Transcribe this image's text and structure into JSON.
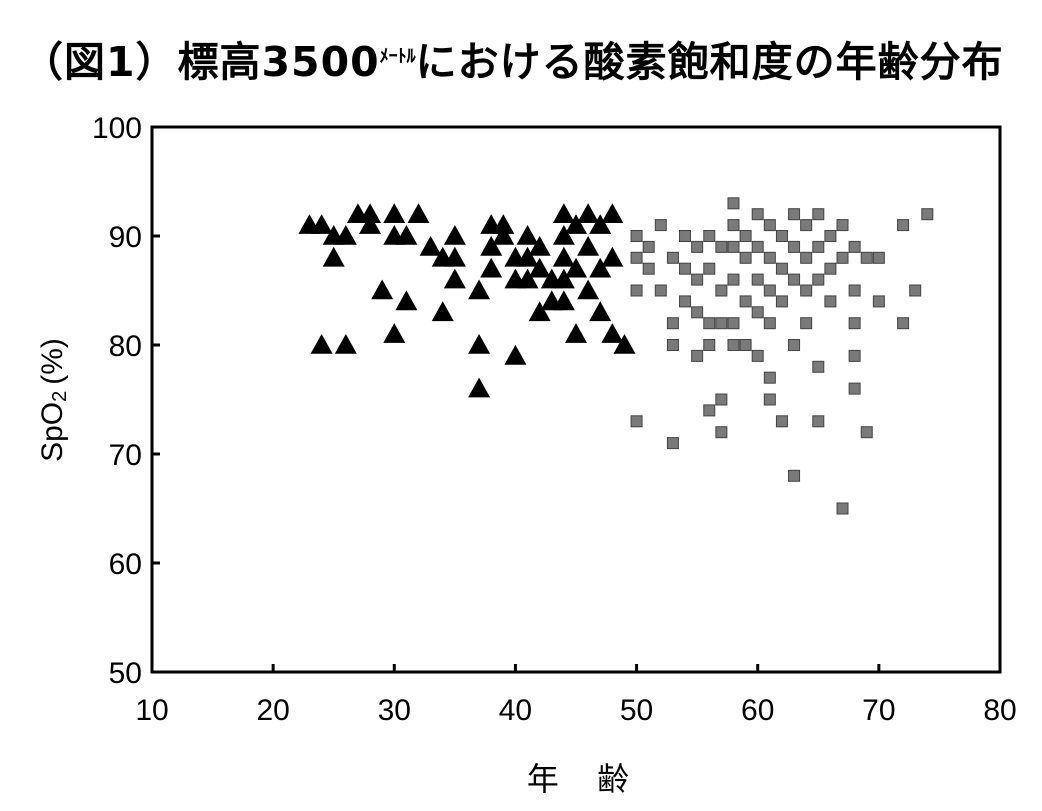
{
  "title": {
    "prefix": "（図1）",
    "main": "標高3500",
    "unit_small": "ﾒｰﾄﾙ",
    "rest": "における酸素飽和度の年齢分布"
  },
  "chart_data": {
    "type": "scatter",
    "title": "（図1）標高3500ﾒｰﾄﾙにおける酸素飽和度の年齢分布",
    "xlabel": "年 齢",
    "ylabel": "SpO2 (%)",
    "ylabel_parts": {
      "base": "SpO",
      "sub": "2",
      "suffix": "(%)"
    },
    "xlim": [
      10,
      80
    ],
    "ylim": [
      50,
      100
    ],
    "x_ticks": [
      10,
      20,
      30,
      40,
      50,
      60,
      70,
      80
    ],
    "y_ticks": [
      50,
      60,
      70,
      80,
      90,
      100
    ],
    "grid": false,
    "series": [
      {
        "marker": "triangle",
        "color": "#000000",
        "points": [
          [
            23,
            91
          ],
          [
            24,
            91
          ],
          [
            25,
            90
          ],
          [
            25,
            88
          ],
          [
            26,
            90
          ],
          [
            27,
            92
          ],
          [
            28,
            92
          ],
          [
            28,
            91
          ],
          [
            30,
            92
          ],
          [
            30,
            90
          ],
          [
            32,
            92
          ],
          [
            31,
            90
          ],
          [
            24,
            80
          ],
          [
            26,
            80
          ],
          [
            29,
            85
          ],
          [
            30,
            81
          ],
          [
            31,
            84
          ],
          [
            33,
            89
          ],
          [
            34,
            88
          ],
          [
            34,
            83
          ],
          [
            35,
            90
          ],
          [
            35,
            88
          ],
          [
            35,
            86
          ],
          [
            37,
            80
          ],
          [
            37,
            76
          ],
          [
            37,
            85
          ],
          [
            38,
            91
          ],
          [
            38,
            89
          ],
          [
            38,
            87
          ],
          [
            39,
            90
          ],
          [
            39,
            91
          ],
          [
            40,
            88
          ],
          [
            40,
            86
          ],
          [
            40,
            79
          ],
          [
            41,
            90
          ],
          [
            41,
            88
          ],
          [
            41,
            86
          ],
          [
            42,
            89
          ],
          [
            42,
            87
          ],
          [
            42,
            83
          ],
          [
            43,
            86
          ],
          [
            43,
            84
          ],
          [
            44,
            92
          ],
          [
            44,
            90
          ],
          [
            44,
            88
          ],
          [
            44,
            86
          ],
          [
            44,
            84
          ],
          [
            45,
            81
          ],
          [
            45,
            87
          ],
          [
            45,
            91
          ],
          [
            46,
            85
          ],
          [
            46,
            92
          ],
          [
            46,
            89
          ],
          [
            47,
            83
          ],
          [
            47,
            87
          ],
          [
            47,
            91
          ],
          [
            48,
            88
          ],
          [
            48,
            92
          ],
          [
            48,
            81
          ],
          [
            49,
            80
          ]
        ]
      },
      {
        "marker": "square",
        "color": "#7a7a7a",
        "points": [
          [
            50,
            90
          ],
          [
            50,
            88
          ],
          [
            50,
            85
          ],
          [
            50,
            73
          ],
          [
            51,
            89
          ],
          [
            51,
            87
          ],
          [
            52,
            91
          ],
          [
            52,
            85
          ],
          [
            53,
            88
          ],
          [
            53,
            82
          ],
          [
            53,
            80
          ],
          [
            53,
            71
          ],
          [
            54,
            90
          ],
          [
            54,
            87
          ],
          [
            54,
            84
          ],
          [
            55,
            89
          ],
          [
            55,
            86
          ],
          [
            55,
            83
          ],
          [
            55,
            79
          ],
          [
            56,
            90
          ],
          [
            56,
            87
          ],
          [
            56,
            82
          ],
          [
            56,
            80
          ],
          [
            56,
            74
          ],
          [
            57,
            89
          ],
          [
            57,
            85
          ],
          [
            57,
            82
          ],
          [
            57,
            75
          ],
          [
            57,
            72
          ],
          [
            58,
            91
          ],
          [
            58,
            89
          ],
          [
            58,
            86
          ],
          [
            58,
            82
          ],
          [
            58,
            93
          ],
          [
            58,
            80
          ],
          [
            59,
            90
          ],
          [
            59,
            88
          ],
          [
            59,
            84
          ],
          [
            59,
            80
          ],
          [
            60,
            92
          ],
          [
            60,
            89
          ],
          [
            60,
            86
          ],
          [
            60,
            83
          ],
          [
            60,
            79
          ],
          [
            61,
            91
          ],
          [
            61,
            88
          ],
          [
            61,
            85
          ],
          [
            61,
            82
          ],
          [
            61,
            77
          ],
          [
            61,
            75
          ],
          [
            62,
            90
          ],
          [
            62,
            87
          ],
          [
            62,
            84
          ],
          [
            62,
            73
          ],
          [
            63,
            92
          ],
          [
            63,
            89
          ],
          [
            63,
            86
          ],
          [
            63,
            80
          ],
          [
            63,
            68
          ],
          [
            64,
            91
          ],
          [
            64,
            88
          ],
          [
            64,
            85
          ],
          [
            64,
            82
          ],
          [
            65,
            92
          ],
          [
            65,
            89
          ],
          [
            65,
            86
          ],
          [
            65,
            78
          ],
          [
            65,
            73
          ],
          [
            66,
            90
          ],
          [
            66,
            87
          ],
          [
            66,
            84
          ],
          [
            67,
            91
          ],
          [
            67,
            88
          ],
          [
            67,
            65
          ],
          [
            68,
            89
          ],
          [
            68,
            85
          ],
          [
            68,
            82
          ],
          [
            68,
            79
          ],
          [
            68,
            76
          ],
          [
            69,
            88
          ],
          [
            69,
            72
          ],
          [
            70,
            88
          ],
          [
            70,
            84
          ],
          [
            72,
            91
          ],
          [
            72,
            82
          ],
          [
            73,
            85
          ],
          [
            74,
            92
          ]
        ]
      }
    ]
  }
}
